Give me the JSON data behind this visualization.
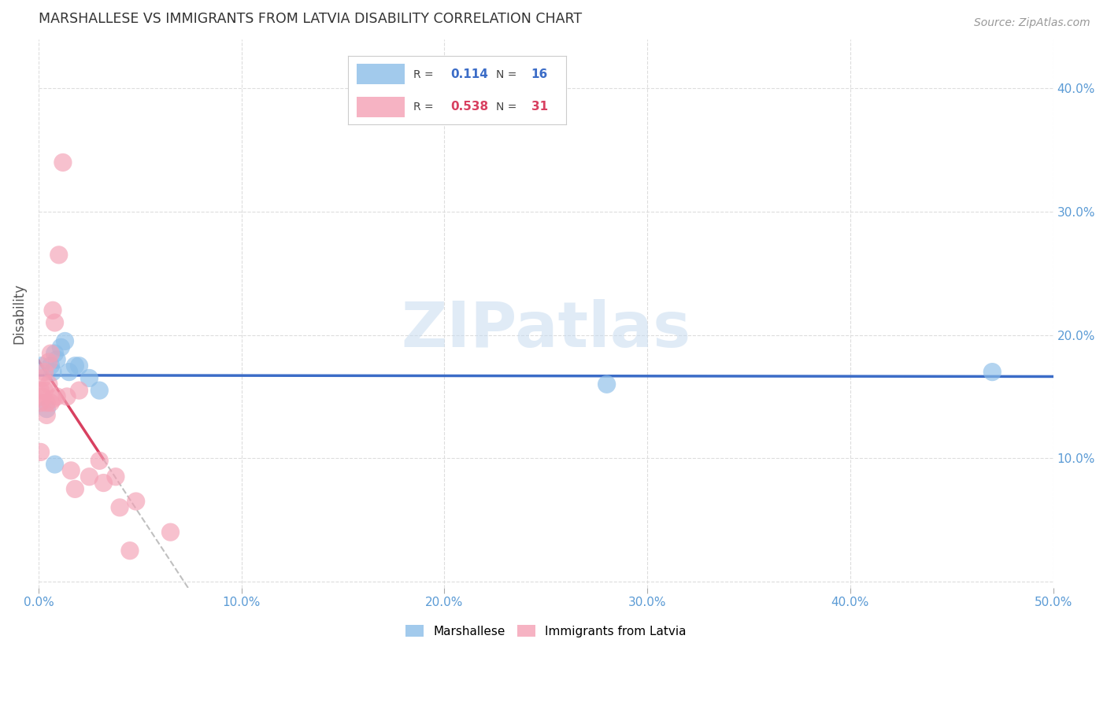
{
  "title": "MARSHALLESE VS IMMIGRANTS FROM LATVIA DISABILITY CORRELATION CHART",
  "source": "Source: ZipAtlas.com",
  "ylabel_label": "Disability",
  "xlim": [
    0.0,
    0.5
  ],
  "ylim": [
    -0.005,
    0.44
  ],
  "xticks": [
    0.0,
    0.1,
    0.2,
    0.3,
    0.4,
    0.5
  ],
  "yticks": [
    0.0,
    0.1,
    0.2,
    0.3,
    0.4
  ],
  "xtick_labels": [
    "0.0%",
    "10.0%",
    "20.0%",
    "30.0%",
    "40.0%",
    "50.0%"
  ],
  "ytick_labels_right": [
    "",
    "10.0%",
    "20.0%",
    "30.0%",
    "40.0%"
  ],
  "color_marshallese": "#8BBDE8",
  "color_latvia": "#F4A0B5",
  "trendline_marshallese": "#3B6CC7",
  "trendline_latvia": "#D84060",
  "trendline_dashed": "#C0C0C0",
  "background_color": "#FFFFFF",
  "grid_color": "#DDDDDD",
  "title_color": "#333333",
  "axis_label_color": "#555555",
  "tick_color": "#5B9BD5",
  "watermark": "ZIPatlas",
  "marshallese_x": [
    0.001,
    0.004,
    0.006,
    0.007,
    0.008,
    0.009,
    0.011,
    0.013,
    0.015,
    0.018,
    0.02,
    0.025,
    0.03,
    0.28,
    0.47,
    0.008
  ],
  "marshallese_y": [
    0.175,
    0.14,
    0.175,
    0.17,
    0.185,
    0.18,
    0.19,
    0.195,
    0.17,
    0.175,
    0.175,
    0.165,
    0.155,
    0.16,
    0.17,
    0.095
  ],
  "latvia_x": [
    0.001,
    0.001,
    0.001,
    0.002,
    0.002,
    0.003,
    0.003,
    0.004,
    0.004,
    0.005,
    0.005,
    0.006,
    0.006,
    0.007,
    0.007,
    0.008,
    0.009,
    0.01,
    0.012,
    0.014,
    0.016,
    0.018,
    0.02,
    0.025,
    0.03,
    0.032,
    0.038,
    0.04,
    0.045,
    0.048,
    0.065
  ],
  "latvia_y": [
    0.155,
    0.145,
    0.105,
    0.165,
    0.15,
    0.17,
    0.155,
    0.145,
    0.135,
    0.178,
    0.16,
    0.185,
    0.145,
    0.22,
    0.148,
    0.21,
    0.15,
    0.265,
    0.34,
    0.15,
    0.09,
    0.075,
    0.155,
    0.085,
    0.098,
    0.08,
    0.085,
    0.06,
    0.025,
    0.065,
    0.04
  ],
  "trend_latvia_x0": 0.0,
  "trend_latvia_x1": 0.032,
  "trend_latvia_x_dash0": 0.032,
  "trend_latvia_x_dash1": 0.125,
  "trend_marshallese_x0": 0.0,
  "trend_marshallese_x1": 0.5
}
